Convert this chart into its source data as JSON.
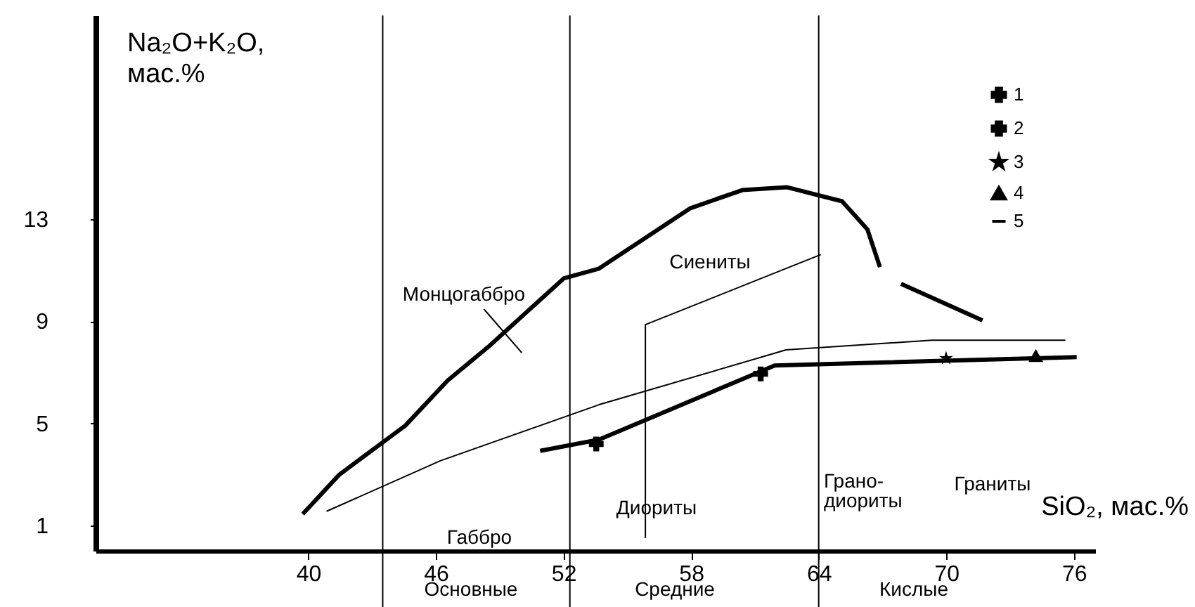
{
  "chart_data": {
    "type": "line",
    "xlabel": "SiO₂, мас.%",
    "ylabel": "Na₂O+K₂O,\nмас.%",
    "xlim": [
      30,
      77
    ],
    "xticks": [
      40,
      46,
      52,
      58,
      64,
      70,
      76
    ],
    "ylim": [
      0,
      21
    ],
    "yticks": [
      1,
      5,
      9,
      13
    ],
    "grid": false,
    "legend": "top right",
    "series": [
      {
        "name": "1",
        "type": "scatter",
        "marker": "cross",
        "color": "#000000",
        "x": [
          53.54
        ],
        "values": [
          4.19
        ]
      },
      {
        "name": "2",
        "type": "scatter",
        "marker": "cross",
        "color": "#000000",
        "x": [
          61.27
        ],
        "values": [
          6.94
        ]
      },
      {
        "name": "3",
        "type": "scatter",
        "marker": "star",
        "color": "#000000",
        "x": [
          69.99
        ],
        "values": [
          7.55
        ]
      },
      {
        "name": "4",
        "type": "scatter",
        "marker": "triangle",
        "color": "#000000",
        "x": [
          74.21
        ],
        "values": [
          7.66
        ]
      },
      {
        "name": "5",
        "color": "#000000",
        "x": [
          39.74,
          41.45,
          44.56,
          46.54,
          48.52,
          52.02,
          53.67,
          57.97,
          60.41,
          62.52,
          65.1,
          66.29,
          66.88,
          null,
          67.87,
          71.7,
          null,
          50.9,
          53.67,
          61.93,
          76.13
        ],
        "values": [
          1.44,
          2.98,
          4.91,
          6.67,
          8.04,
          10.69,
          11.07,
          13.44,
          14.15,
          14.26,
          13.71,
          12.61,
          11.13,
          null,
          10.47,
          9.04,
          null,
          3.92,
          4.36,
          7.27,
          7.6
        ]
      },
      {
        "color": "#000000",
        "x": [
          40.86,
          46.21,
          53.67,
          62.46,
          69.33,
          75.6
        ],
        "values": [
          1.55,
          3.53,
          5.73,
          7.88,
          8.26,
          8.26
        ]
      },
      {
        "color": "#000000",
        "x": [
          55.85,
          55.85,
          64.1
        ],
        "values": [
          0.5,
          8.87,
          11.62
        ]
      },
      {
        "color": "#000000",
        "x": [
          48.26,
          50.04
        ],
        "values": [
          9.48,
          7.77
        ]
      }
    ],
    "ref_lines": [
      {
        "axis": "x",
        "value": 43.5,
        "color": "#000000"
      },
      {
        "axis": "x",
        "value": 52.3,
        "color": "#000000"
      },
      {
        "axis": "x",
        "value": 64,
        "color": "#000000"
      }
    ],
    "annotations": [
      "Монцогаббро",
      "Сиениты",
      "Диориты",
      "Грано-\nдиориты",
      "Граниты",
      "Габбро",
      "Основные",
      "Средние",
      "Кислые"
    ]
  }
}
